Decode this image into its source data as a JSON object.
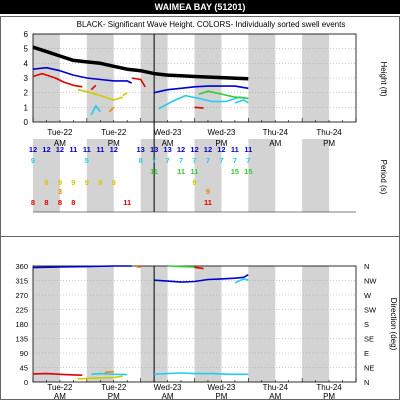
{
  "page": {
    "title": "WAIMEA BAY (51201)"
  },
  "colors": {
    "black": "#000000",
    "blue": "#0000cc",
    "red": "#e00000",
    "cyan": "#22ccee",
    "green": "#33cc33",
    "yellow": "#cccc00",
    "orange": "#ee8800",
    "shade": "#d3d3d3"
  },
  "chart_data": [
    {
      "type": "line",
      "title": "BLACK- Significant Wave Height.  COLORS- Individually sorted swell events",
      "ylabel": "Height (ft)",
      "ylim": [
        0,
        6
      ],
      "yticks": [
        0,
        1,
        2,
        3,
        4,
        5,
        6
      ],
      "xlim": [
        0,
        72
      ],
      "x_units": "hours from Tue-22 00:00",
      "now_hour": 27,
      "shaded_hours": [
        [
          0,
          6
        ],
        [
          12,
          18
        ],
        [
          24,
          30
        ],
        [
          36,
          42
        ],
        [
          48,
          54
        ],
        [
          60,
          66
        ]
      ],
      "day_labels": [
        {
          "x": 6,
          "day": "Tue-22",
          "ampm": "AM"
        },
        {
          "x": 18,
          "day": "Tue-22",
          "ampm": "PM"
        },
        {
          "x": 30,
          "day": "Wed-23",
          "ampm": "AM"
        },
        {
          "x": 42,
          "day": "Wed-23",
          "ampm": "PM"
        },
        {
          "x": 54,
          "day": "Thu-24",
          "ampm": "AM"
        },
        {
          "x": 66,
          "day": "Thu-24",
          "ampm": "PM"
        }
      ],
      "series": [
        {
          "color": "black",
          "width": 3.5,
          "points": [
            [
              0,
              5.1
            ],
            [
              3,
              4.8
            ],
            [
              6,
              4.5
            ],
            [
              9,
              4.2
            ],
            [
              12,
              4.1
            ],
            [
              15,
              4.0
            ],
            [
              18,
              3.8
            ],
            [
              21,
              3.6
            ],
            [
              24,
              3.5
            ],
            [
              27,
              3.3
            ],
            [
              30,
              3.2
            ],
            [
              33,
              3.15
            ],
            [
              36,
              3.1
            ],
            [
              40,
              3.05
            ],
            [
              44,
              3.0
            ],
            [
              48,
              2.95
            ]
          ]
        },
        {
          "color": "blue",
          "width": 1.6,
          "points": [
            [
              0,
              3.6
            ],
            [
              3,
              3.7
            ],
            [
              6,
              3.5
            ],
            [
              9,
              3.2
            ],
            [
              12,
              3.0
            ],
            [
              15,
              2.9
            ],
            [
              18,
              2.8
            ],
            [
              21,
              2.8
            ],
            [
              22,
              2.65
            ]
          ]
        },
        {
          "color": "blue",
          "width": 1.6,
          "points": [
            [
              27,
              2.0
            ],
            [
              30,
              2.2
            ],
            [
              33,
              2.3
            ],
            [
              36,
              2.4
            ],
            [
              39,
              2.45
            ],
            [
              42,
              2.45
            ],
            [
              45,
              2.45
            ],
            [
              48,
              2.3
            ]
          ]
        },
        {
          "color": "red",
          "width": 1.6,
          "points": [
            [
              0,
              3.1
            ],
            [
              2,
              3.3
            ],
            [
              5,
              3.0
            ],
            [
              7,
              2.7
            ],
            [
              9,
              2.5
            ],
            [
              11,
              2.4
            ]
          ]
        },
        {
          "color": "red",
          "width": 1.6,
          "points": [
            [
              13,
              2.2
            ],
            [
              14,
              2.5
            ]
          ]
        },
        {
          "color": "red",
          "width": 1.6,
          "points": [
            [
              22,
              3.0
            ],
            [
              24,
              2.9
            ],
            [
              25,
              2.4
            ]
          ]
        },
        {
          "color": "red",
          "width": 1.6,
          "points": [
            [
              36,
              1.0
            ],
            [
              38,
              0.95
            ]
          ]
        },
        {
          "color": "cyan",
          "width": 1.6,
          "points": [
            [
              13,
              0.5
            ],
            [
              14,
              1.1
            ],
            [
              15,
              0.7
            ]
          ]
        },
        {
          "color": "cyan",
          "width": 1.6,
          "points": [
            [
              28,
              0.9
            ],
            [
              31,
              1.4
            ],
            [
              34,
              1.8
            ],
            [
              37,
              1.6
            ],
            [
              40,
              1.4
            ],
            [
              43,
              1.4
            ],
            [
              46,
              1.7
            ],
            [
              48,
              1.6
            ]
          ]
        },
        {
          "color": "cyan",
          "width": 1.6,
          "points": [
            [
              45,
              1.3
            ],
            [
              47,
              1.5
            ],
            [
              48,
              1.3
            ]
          ]
        },
        {
          "color": "green",
          "width": 1.6,
          "points": [
            [
              37,
              1.9
            ],
            [
              39,
              2.1
            ],
            [
              42,
              1.9
            ],
            [
              45,
              1.7
            ],
            [
              48,
              1.6
            ]
          ]
        },
        {
          "color": "yellow",
          "width": 1.6,
          "points": [
            [
              10,
              2.2
            ],
            [
              13,
              2.0
            ],
            [
              15,
              1.8
            ],
            [
              18,
              1.5
            ],
            [
              20,
              1.7
            ]
          ]
        },
        {
          "color": "yellow",
          "width": 1.6,
          "points": [
            [
              20,
              1.8
            ],
            [
              21,
              2.0
            ]
          ]
        },
        {
          "color": "orange",
          "width": 1.6,
          "points": [
            [
              17,
              0.7
            ],
            [
              18,
              1.0
            ]
          ]
        }
      ]
    },
    {
      "type": "table",
      "ylabel": "Period (s)",
      "rows": [
        {
          "color": "blue",
          "cells": [
            [
              0,
              "12"
            ],
            [
              3,
              "12"
            ],
            [
              6,
              "12"
            ],
            [
              9,
              "11"
            ],
            [
              12,
              "11"
            ],
            [
              15,
              "11"
            ],
            [
              18,
              "12"
            ],
            [
              24,
              "13"
            ],
            [
              27,
              "13"
            ],
            [
              30,
              "13"
            ],
            [
              33,
              "12"
            ],
            [
              36,
              "12"
            ],
            [
              39,
              "12"
            ],
            [
              42,
              "12"
            ],
            [
              45,
              "11"
            ],
            [
              48,
              "11"
            ]
          ]
        },
        {
          "color": "cyan",
          "cells": [
            [
              0,
              "9"
            ],
            [
              12,
              "5"
            ],
            [
              24,
              "8"
            ],
            [
              27,
              "7"
            ],
            [
              30,
              "7"
            ],
            [
              33,
              "7"
            ],
            [
              36,
              "7"
            ],
            [
              39,
              "7"
            ],
            [
              42,
              "7"
            ],
            [
              45,
              "7"
            ],
            [
              48,
              "7"
            ]
          ]
        },
        {
          "color": "green",
          "cells": [
            [
              27,
              "11"
            ],
            [
              33,
              "11"
            ],
            [
              36,
              "11"
            ],
            [
              45,
              "15"
            ],
            [
              48,
              "15"
            ]
          ]
        },
        {
          "color": "yellow",
          "cells": [
            [
              3,
              "9"
            ],
            [
              6,
              "9"
            ],
            [
              9,
              "9"
            ],
            [
              12,
              "9"
            ],
            [
              15,
              "9"
            ],
            [
              18,
              "9"
            ],
            [
              36,
              "9"
            ]
          ]
        },
        {
          "color": "orange",
          "cells": [
            [
              6,
              "3"
            ],
            [
              39,
              "9"
            ]
          ]
        },
        {
          "color": "red",
          "cells": [
            [
              0,
              "8"
            ],
            [
              3,
              "8"
            ],
            [
              6,
              "8"
            ],
            [
              9,
              "8"
            ],
            [
              21,
              "11"
            ],
            [
              39,
              "11"
            ]
          ]
        }
      ]
    },
    {
      "type": "line",
      "ylabel": "Direction (deg)",
      "ylim": [
        0,
        360
      ],
      "yticks": [
        0,
        45,
        90,
        135,
        180,
        225,
        270,
        315,
        360
      ],
      "compass": [
        "N",
        "NE",
        "E",
        "SE",
        "S",
        "SW",
        "W",
        "NW",
        "N"
      ],
      "xlim": [
        0,
        72
      ],
      "series": [
        {
          "color": "blue",
          "width": 1.6,
          "points": [
            [
              0,
              355
            ],
            [
              6,
              357
            ],
            [
              12,
              358
            ],
            [
              18,
              360
            ],
            [
              22,
              360
            ]
          ]
        },
        {
          "color": "blue",
          "width": 1.6,
          "points": [
            [
              27,
              316
            ],
            [
              30,
              313
            ],
            [
              33,
              310
            ],
            [
              36,
              312
            ],
            [
              39,
              318
            ],
            [
              42,
              320
            ],
            [
              45,
              322
            ],
            [
              47,
              325
            ],
            [
              48,
              333
            ]
          ]
        },
        {
          "color": "red",
          "width": 1.6,
          "points": [
            [
              0,
              25
            ],
            [
              3,
              26
            ],
            [
              6,
              24
            ],
            [
              9,
              22
            ],
            [
              11,
              21
            ]
          ]
        },
        {
          "color": "red",
          "width": 1.6,
          "points": [
            [
              36,
              356
            ],
            [
              38,
              352
            ]
          ]
        },
        {
          "color": "cyan",
          "width": 1.6,
          "points": [
            [
              13,
              24
            ],
            [
              15,
              26
            ],
            [
              18,
              24
            ],
            [
              21,
              23
            ]
          ]
        },
        {
          "color": "cyan",
          "width": 1.6,
          "points": [
            [
              27,
              24
            ],
            [
              30,
              26
            ],
            [
              33,
              28
            ],
            [
              36,
              26
            ],
            [
              40,
              26
            ],
            [
              44,
              24
            ],
            [
              48,
              24
            ]
          ]
        },
        {
          "color": "cyan",
          "width": 1.6,
          "points": [
            [
              45,
              308
            ],
            [
              47,
              320
            ],
            [
              48,
              316
            ]
          ]
        },
        {
          "color": "green",
          "width": 1.6,
          "points": [
            [
              30,
              360
            ],
            [
              33,
              358
            ],
            [
              36,
              357
            ]
          ]
        },
        {
          "color": "yellow",
          "width": 1.6,
          "points": [
            [
              10,
              10
            ],
            [
              14,
              12
            ],
            [
              18,
              14
            ],
            [
              20,
              18
            ]
          ]
        },
        {
          "color": "orange",
          "width": 1.6,
          "points": [
            [
              16,
              30
            ],
            [
              18,
              32
            ]
          ]
        },
        {
          "color": "orange",
          "width": 1.6,
          "points": [
            [
              23,
              358
            ],
            [
              24,
              356
            ]
          ]
        }
      ]
    }
  ]
}
